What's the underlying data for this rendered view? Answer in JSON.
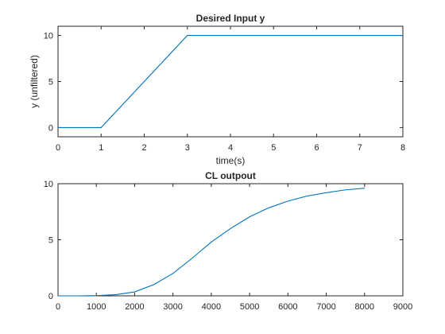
{
  "chart_data": [
    {
      "type": "line",
      "title": "Desired Input y",
      "xlabel": "time(s)",
      "ylabel": "y (unfiltered)",
      "xlim": [
        0,
        8
      ],
      "ylim": [
        -1,
        11
      ],
      "xticks": [
        0,
        1,
        2,
        3,
        4,
        5,
        6,
        7,
        8
      ],
      "yticks": [
        0,
        5,
        10
      ],
      "grid": false,
      "series": [
        {
          "color": "#0072BD",
          "x": [
            0,
            1,
            3,
            8
          ],
          "y": [
            0,
            0,
            10,
            10
          ]
        }
      ]
    },
    {
      "type": "line",
      "title": "CL outpout",
      "xlabel": "",
      "ylabel": "",
      "xlim": [
        0,
        9000
      ],
      "ylim": [
        0,
        10
      ],
      "xticks": [
        0,
        1000,
        2000,
        3000,
        4000,
        5000,
        6000,
        7000,
        8000,
        9000
      ],
      "yticks": [
        0,
        5,
        10
      ],
      "grid": false,
      "series": [
        {
          "color": "#0072BD",
          "x": [
            0,
            500,
            1000,
            1500,
            2000,
            2500,
            3000,
            3500,
            4000,
            4500,
            5000,
            5500,
            6000,
            6500,
            7000,
            7500,
            8000
          ],
          "y": [
            0,
            0,
            0.02,
            0.1,
            0.35,
            1.0,
            2.0,
            3.35,
            4.8,
            6.0,
            7.05,
            7.85,
            8.45,
            8.9,
            9.2,
            9.45,
            9.6
          ]
        }
      ]
    }
  ]
}
